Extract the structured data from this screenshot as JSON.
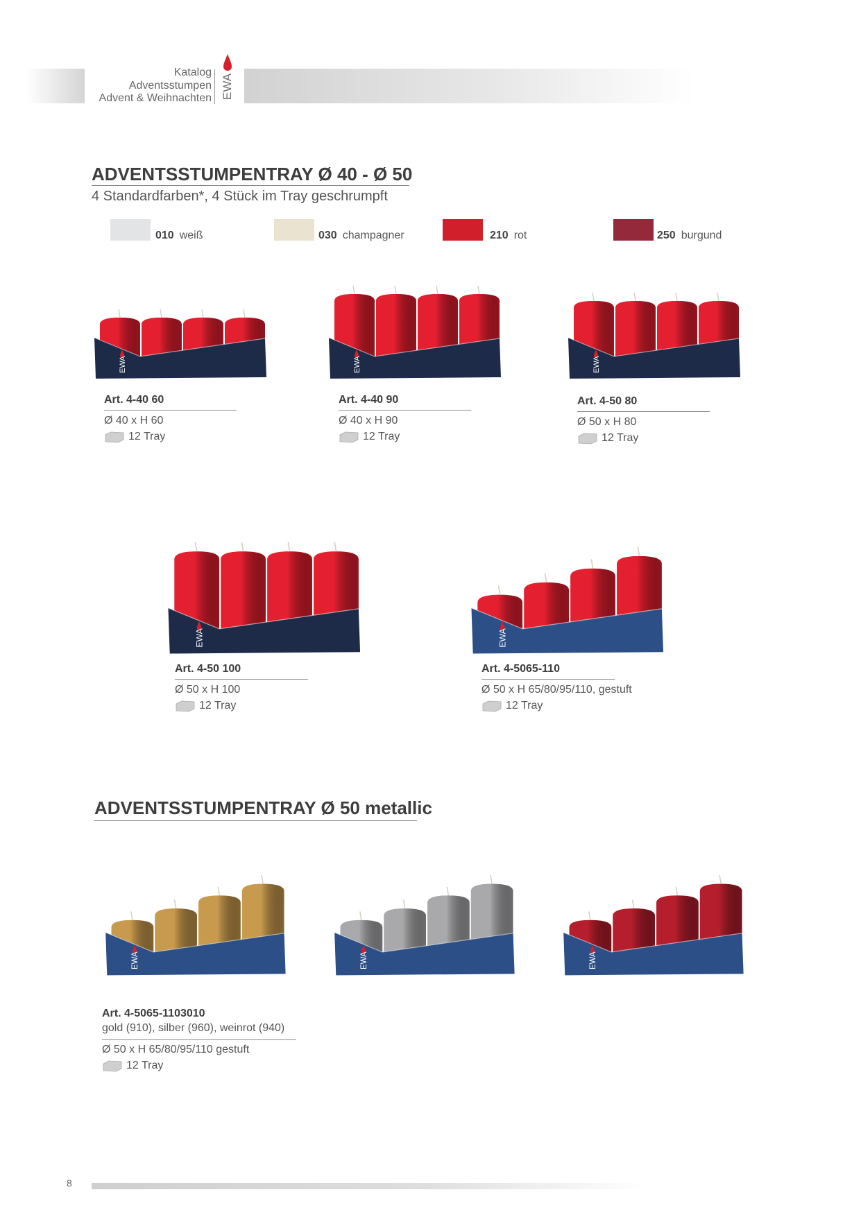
{
  "header": {
    "lines": [
      "Katalog",
      "Adventsstumpen",
      "Advent & Weihnachten"
    ],
    "logo_text": "EWA"
  },
  "section1": {
    "title": "ADVENTSSTUMPENTRAY Ø 40 - Ø 50",
    "subtitle": "4 Standardfarben*, 4 Stück im Tray geschrumpft",
    "colors": [
      {
        "code": "010",
        "name": "weiß",
        "hex": "#e3e4e6"
      },
      {
        "code": "030",
        "name": "champagner",
        "hex": "#e9e3cf"
      },
      {
        "code": "210",
        "name": "rot",
        "hex": "#d11f2b"
      },
      {
        "code": "250",
        "name": "burgund",
        "hex": "#93293a"
      }
    ],
    "products": [
      {
        "art": "Art. 4-40 60",
        "dims": "Ø 40 x H 60",
        "tray": "12 Tray"
      },
      {
        "art": "Art. 4-40 90",
        "dims": "Ø 40 x H 90",
        "tray": "12 Tray"
      },
      {
        "art": "Art. 4-50 80",
        "dims": "Ø 50 x H 80",
        "tray": "12 Tray"
      },
      {
        "art": "Art. 4-50 100",
        "dims": "Ø 50 x H 100",
        "tray": "12 Tray"
      },
      {
        "art": "Art. 4-5065-110",
        "dims": "Ø 50 x H 65/80/95/110, gestuft",
        "tray": "12 Tray"
      }
    ]
  },
  "section2": {
    "title": "ADVENTSSTUMPENTRAY Ø 50 metallic",
    "product": {
      "art": "Art. 4-5065-1103010",
      "colors_line": "gold (910), silber (960), weinrot (940)",
      "dims": "Ø 50 x H 65/80/95/110 gestuft",
      "tray": "12 Tray"
    },
    "variant_colors": [
      "#c89a4e",
      "#a9a9ab",
      "#b51e2c"
    ]
  },
  "footer": {
    "page_number": "8"
  },
  "palette": {
    "candle_red": "#e41f2f",
    "tray_navy": "#1d2a48",
    "tray_blue": "#2b4f86"
  }
}
